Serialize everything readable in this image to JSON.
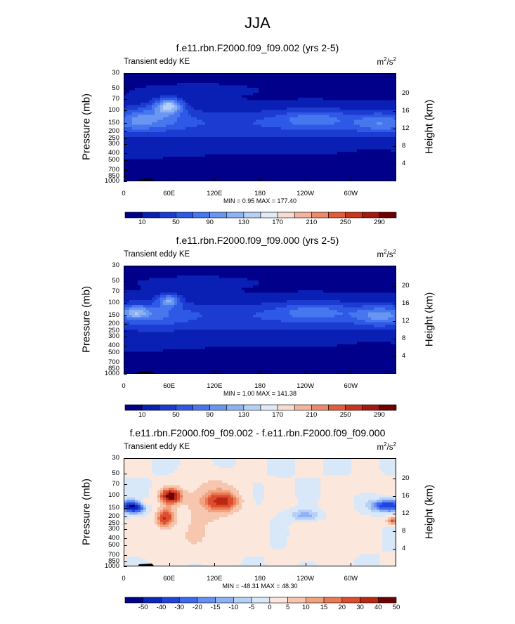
{
  "figure": {
    "title": "JJA"
  },
  "chart_data": [
    {
      "type": "heatmap",
      "title": "f.e11.rbn.F2000.f09_f09.002 (yrs 2-5)",
      "left_label": "Transient eddy KE",
      "units": "m",
      "units_exp": "2",
      "units_den": "/s",
      "units_den_exp": "2",
      "ylabel": "Pressure (mb)",
      "ylabel_right": "Height (km)",
      "x_ticks": [
        "0",
        "60E",
        "120E",
        "180",
        "120W",
        "60W"
      ],
      "y_ticks": [
        "30",
        "50",
        "70",
        "100",
        "150",
        "200",
        "250",
        "300",
        "400",
        "500",
        "700",
        "850",
        "1000"
      ],
      "y_ticks_right": [
        "20",
        "16",
        "12",
        "8",
        "4"
      ],
      "min_max_text": "MIN =   0.95  MAX = 177.40",
      "min": 0.95,
      "max": 177.4,
      "colorbar_labels": [
        "10",
        "50",
        "90",
        "130",
        "170",
        "210",
        "250",
        "290"
      ],
      "contour_levels": [
        10,
        30,
        50,
        70,
        90,
        110,
        130,
        150,
        170,
        190,
        210,
        230,
        250,
        270,
        290
      ]
    },
    {
      "type": "heatmap",
      "title": "f.e11.rbn.F2000.f09_f09.000 (yrs 2-5)",
      "left_label": "Transient eddy KE",
      "units": "m",
      "units_exp": "2",
      "units_den": "/s",
      "units_den_exp": "2",
      "ylabel": "Pressure (mb)",
      "ylabel_right": "Height (km)",
      "x_ticks": [
        "0",
        "60E",
        "120E",
        "180",
        "120W",
        "60W"
      ],
      "y_ticks": [
        "30",
        "50",
        "70",
        "100",
        "150",
        "200",
        "250",
        "300",
        "400",
        "500",
        "700",
        "850",
        "1000"
      ],
      "y_ticks_right": [
        "20",
        "16",
        "12",
        "8",
        "4"
      ],
      "min_max_text": "MIN =   1.00  MAX = 141.38",
      "min": 1.0,
      "max": 141.38,
      "colorbar_labels": [
        "10",
        "50",
        "90",
        "130",
        "170",
        "210",
        "250",
        "290"
      ],
      "contour_levels": [
        10,
        30,
        50,
        70,
        90,
        110,
        130,
        150,
        170,
        190,
        210,
        230,
        250,
        270,
        290
      ]
    },
    {
      "type": "heatmap",
      "title": "f.e11.rbn.F2000.f09_f09.002 - f.e11.rbn.F2000.f09_f09.000",
      "left_label": "Transient eddy KE",
      "units": "m",
      "units_exp": "2",
      "units_den": "/s",
      "units_den_exp": "2",
      "ylabel": "Pressure (mb)",
      "ylabel_right": "Height (km)",
      "x_ticks": [
        "0",
        "60E",
        "120E",
        "180",
        "120W",
        "60W"
      ],
      "y_ticks": [
        "30",
        "50",
        "70",
        "100",
        "150",
        "200",
        "250",
        "300",
        "400",
        "500",
        "700",
        "850",
        "1000"
      ],
      "y_ticks_right": [
        "20",
        "16",
        "12",
        "8",
        "4"
      ],
      "min_max_text": "MIN = -48.31  MAX =  48.30",
      "min": -48.31,
      "max": 48.3,
      "colorbar_labels": [
        "-50",
        "-40",
        "-30",
        "-20",
        "-15",
        "-10",
        "-5",
        "0",
        "5",
        "10",
        "15",
        "20",
        "30",
        "40",
        "50"
      ],
      "contour_levels": [
        -50,
        -40,
        -30,
        -20,
        -15,
        -10,
        -5,
        0,
        5,
        10,
        15,
        20,
        30,
        40,
        50
      ]
    }
  ],
  "colors": {
    "abs_scale": [
      "#00008b",
      "#0a1fb3",
      "#1c3bd1",
      "#2e58e6",
      "#4677ef",
      "#6896f2",
      "#8db3f4",
      "#b5d0f5",
      "#e0ebf7",
      "#f7dcd2",
      "#f3b39c",
      "#ed8a6a",
      "#e25c3a",
      "#c8341c",
      "#a41810",
      "#6e0000"
    ],
    "diff_scale": [
      "#00008b",
      "#0f27b8",
      "#2244dc",
      "#3d6aee",
      "#6690f2",
      "#8fb2f4",
      "#b8d0f6",
      "#d9e8f8",
      "#fbe7dc",
      "#f6c6ae",
      "#f1a380",
      "#ea7a55",
      "#dc4e2f",
      "#b82812",
      "#6e0000"
    ],
    "topography": "#000000"
  }
}
